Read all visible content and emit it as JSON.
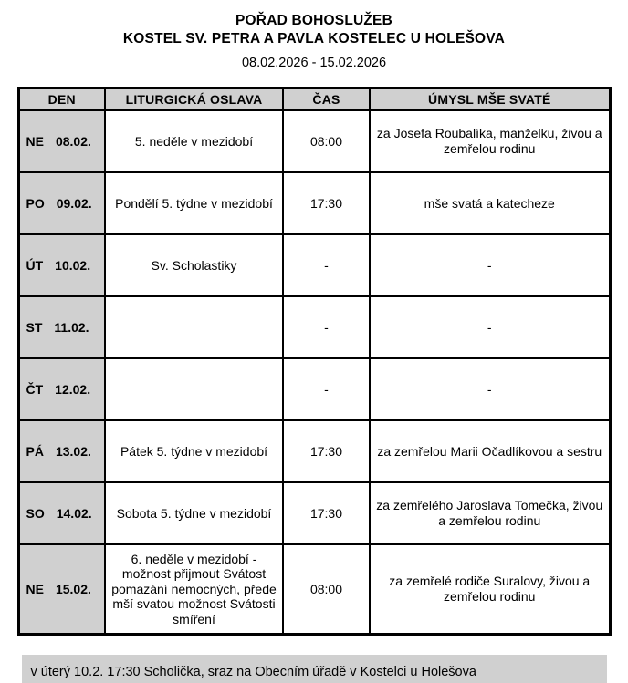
{
  "header": {
    "title": "POŘAD BOHOSLUŽEB",
    "subtitle": "KOSTEL SV. PETRA A PAVLA KOSTELEC U HOLEŠOVA",
    "date_range": "08.02.2026 - 15.02.2026"
  },
  "table": {
    "columns": [
      "DEN",
      "LITURGICKÁ OSLAVA",
      "ČAS",
      "ÚMYSL MŠE SVATÉ"
    ],
    "rows": [
      {
        "day": "NE",
        "date": "08.02.",
        "celebration": "5. neděle v mezidobí",
        "time": "08:00",
        "intention": "za Josefa Roubalíka, manželku, živou a zemřelou rodinu"
      },
      {
        "day": "PO",
        "date": "09.02.",
        "celebration": "Pondělí 5. týdne v mezidobí",
        "time": "17:30",
        "intention": "mše svatá a katecheze"
      },
      {
        "day": "ÚT",
        "date": "10.02.",
        "celebration": "Sv. Scholastiky",
        "time": "-",
        "intention": "-"
      },
      {
        "day": "ST",
        "date": "11.02.",
        "celebration": "",
        "time": "-",
        "intention": "-"
      },
      {
        "day": "ČT",
        "date": "12.02.",
        "celebration": "",
        "time": "-",
        "intention": "-"
      },
      {
        "day": "PÁ",
        "date": "13.02.",
        "celebration": "Pátek 5. týdne v mezidobí",
        "time": "17:30",
        "intention": "za zemřelou Marii Očadlíkovou a sestru"
      },
      {
        "day": "SO",
        "date": "14.02.",
        "celebration": "Sobota 5. týdne v mezidobí",
        "time": "17:30",
        "intention": "za zemřelého Jaroslava Tomečka, živou a zemřelou rodinu"
      },
      {
        "day": "NE",
        "date": "15.02.",
        "celebration": "6. neděle v mezidobí - možnost přijmout Svátost pomazání nemocných, přede mší svatou možnost Svátosti smíření",
        "time": "08:00",
        "intention": "za zemřelé rodiče Suralovy, živou a zemřelou rodinu"
      }
    ]
  },
  "footer": {
    "note": "v úterý 10.2. 17:30 Scholička, sraz na Obecním úřadě v Kostelci u Holešova"
  },
  "colors": {
    "cell_gray": "#d0d0d0",
    "border": "#000000",
    "background": "#ffffff"
  }
}
